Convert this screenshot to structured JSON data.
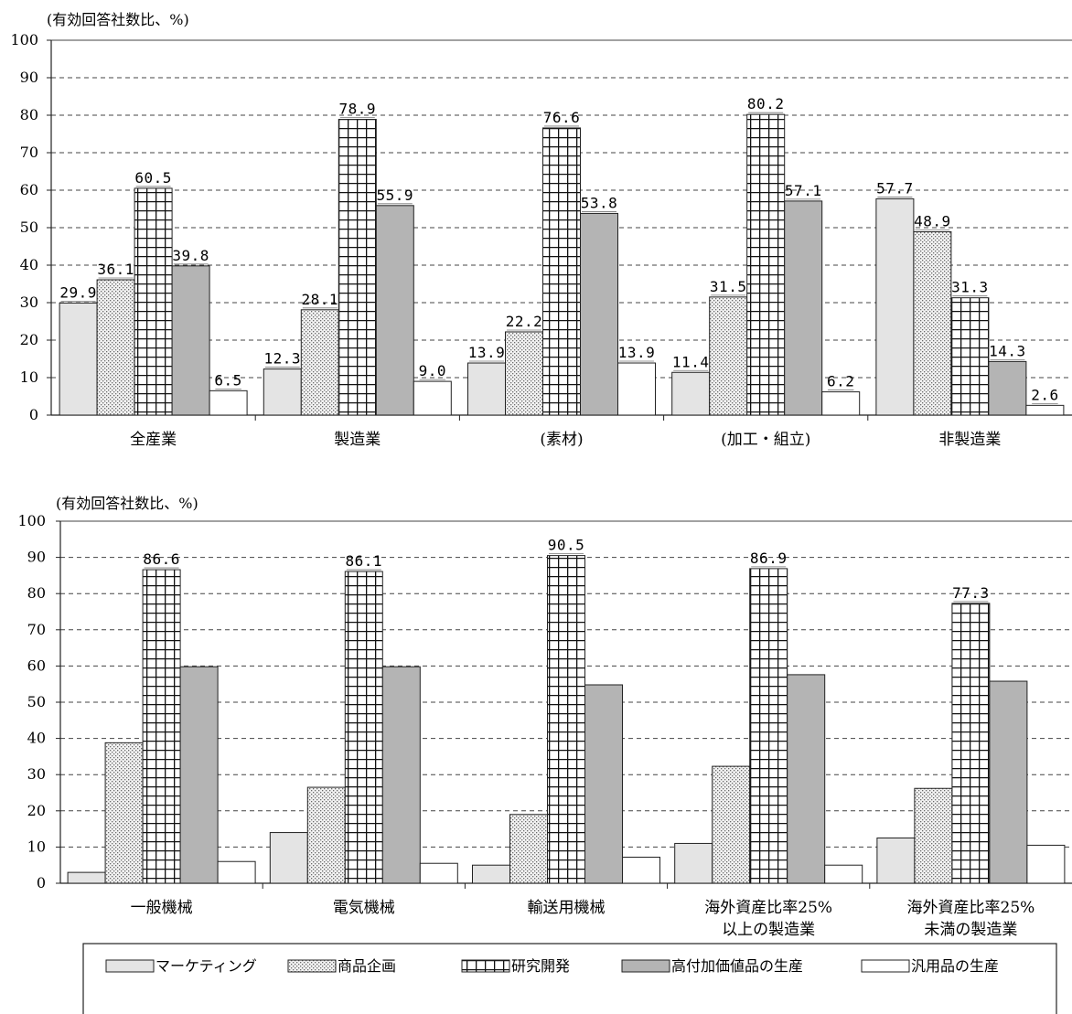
{
  "legend": [
    {
      "label": "マーケティング",
      "pattern": "light"
    },
    {
      "label": "商品企画",
      "pattern": "dots"
    },
    {
      "label": "研究開発",
      "pattern": "grid"
    },
    {
      "label": "高付加価値品の生産",
      "pattern": "gray"
    },
    {
      "label": "汎用品の生産",
      "pattern": "white"
    }
  ],
  "colors": {
    "light": "#e4e4e4",
    "gray": "#b4b4b4",
    "white": "#ffffff",
    "grid_line": "#444444",
    "axis": "#222222"
  },
  "chart_data": [
    {
      "type": "bar",
      "ylabel": "(有効回答社数比、%)",
      "ylim": [
        0,
        100
      ],
      "yticks": [
        "0",
        "10",
        "20",
        "30",
        "40",
        "50",
        "60",
        "70",
        "80",
        "90",
        "100"
      ],
      "grid": true,
      "categories": [
        [
          "全産業"
        ],
        [
          "製造業"
        ],
        [
          "(素材)"
        ],
        [
          "(加工・組立)"
        ],
        [
          "非製造業"
        ]
      ],
      "series": [
        {
          "name": "マーケティング",
          "values": [
            29.9,
            12.3,
            13.9,
            11.4,
            57.7
          ]
        },
        {
          "name": "商品企画",
          "values": [
            36.1,
            28.1,
            22.2,
            31.5,
            48.9
          ]
        },
        {
          "name": "研究開発",
          "values": [
            60.5,
            78.9,
            76.6,
            80.2,
            31.3
          ]
        },
        {
          "name": "高付加価値品の生産",
          "values": [
            39.8,
            55.9,
            53.8,
            57.1,
            14.3
          ]
        },
        {
          "name": "汎用品の生産",
          "values": [
            6.5,
            9.0,
            13.9,
            6.2,
            2.6
          ]
        }
      ],
      "data_labels": [
        [
          "29.9",
          "12.3",
          "13.9",
          "11.4",
          "57.7"
        ],
        [
          "36.1",
          "28.1",
          "22.2",
          "31.5",
          "48.9"
        ],
        [
          "60.5",
          "78.9",
          "76.6",
          "80.2",
          "31.3"
        ],
        [
          "39.8",
          "55.9",
          "53.8",
          "57.1",
          "14.3"
        ],
        [
          "6.5",
          "9.0",
          "13.9",
          "6.2",
          "2.6"
        ]
      ]
    },
    {
      "type": "bar",
      "ylabel": "(有効回答社数比、%)",
      "ylim": [
        0,
        100
      ],
      "yticks": [
        "0",
        "10",
        "20",
        "30",
        "40",
        "50",
        "60",
        "70",
        "80",
        "90",
        "100"
      ],
      "grid": true,
      "categories": [
        [
          "一般機械"
        ],
        [
          "電気機械"
        ],
        [
          "輸送用機械"
        ],
        [
          "海外資産比率25%",
          "以上の製造業"
        ],
        [
          "海外資産比率25%",
          "未満の製造業"
        ]
      ],
      "series": [
        {
          "name": "マーケティング",
          "values": [
            3.0,
            14.0,
            5.0,
            11.0,
            12.5
          ]
        },
        {
          "name": "商品企画",
          "values": [
            38.8,
            26.5,
            19.0,
            32.3,
            26.2
          ]
        },
        {
          "name": "研究開発",
          "values": [
            86.6,
            86.1,
            90.5,
            86.9,
            77.3
          ]
        },
        {
          "name": "高付加価値品の生産",
          "values": [
            59.8,
            59.8,
            54.8,
            57.6,
            55.8
          ]
        },
        {
          "name": "汎用品の生産",
          "values": [
            6.0,
            5.5,
            7.2,
            5.0,
            10.5
          ]
        }
      ],
      "data_labels": [
        [
          "",
          "",
          "",
          "",
          ""
        ],
        [
          "",
          "",
          "",
          "",
          ""
        ],
        [
          "86.6",
          "86.1",
          "90.5",
          "86.9",
          "77.3"
        ],
        [
          "",
          "",
          "",
          "",
          ""
        ],
        [
          "",
          "",
          "",
          "",
          ""
        ]
      ]
    }
  ]
}
